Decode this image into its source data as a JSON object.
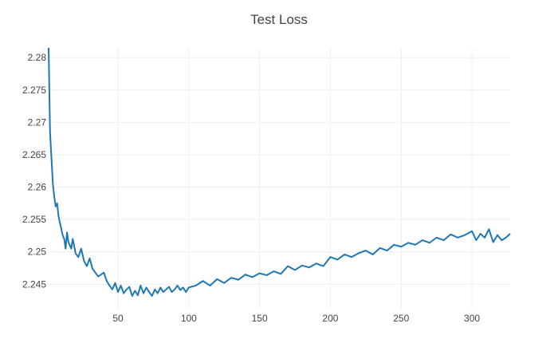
{
  "chart_data": {
    "type": "line",
    "title": "Test Loss",
    "xlabel": "",
    "ylabel": "",
    "xlim": [
      1,
      327
    ],
    "ylim": [
      2.2427,
      2.2815
    ],
    "grid": true,
    "x_ticks": [
      50,
      100,
      150,
      200,
      250,
      300
    ],
    "y_ticks": [
      2.245,
      2.25,
      2.255,
      2.26,
      2.265,
      2.27,
      2.275,
      2.28
    ],
    "series": [
      {
        "color": "#1f77b4",
        "x": [
          1,
          2,
          3,
          4,
          5,
          6,
          7,
          8,
          9,
          10,
          11,
          12,
          13,
          14,
          15,
          16,
          17,
          18,
          19,
          20,
          22,
          24,
          26,
          28,
          30,
          32,
          34,
          36,
          38,
          40,
          42,
          44,
          46,
          48,
          50,
          52,
          54,
          56,
          58,
          60,
          62,
          64,
          66,
          68,
          70,
          72,
          74,
          76,
          78,
          80,
          82,
          84,
          86,
          88,
          90,
          92,
          94,
          96,
          98,
          100,
          105,
          110,
          115,
          120,
          125,
          130,
          135,
          140,
          145,
          150,
          155,
          160,
          165,
          170,
          175,
          180,
          185,
          190,
          195,
          200,
          205,
          210,
          215,
          220,
          225,
          230,
          235,
          240,
          245,
          250,
          255,
          260,
          265,
          270,
          275,
          280,
          285,
          290,
          295,
          300,
          303,
          306,
          309,
          312,
          315,
          318,
          321,
          324,
          327
        ],
        "y": [
          2.2815,
          2.2685,
          2.2645,
          2.2605,
          2.2585,
          2.257,
          2.2575,
          2.2555,
          2.2545,
          2.2535,
          2.2525,
          2.252,
          2.2505,
          2.253,
          2.2515,
          2.251,
          2.2505,
          2.252,
          2.251,
          2.2498,
          2.2492,
          2.2505,
          2.2486,
          2.2478,
          2.249,
          2.2474,
          2.2468,
          2.2462,
          2.2465,
          2.2468,
          2.2455,
          2.2448,
          2.2442,
          2.2452,
          2.2438,
          2.2448,
          2.2436,
          2.2442,
          2.2446,
          2.2432,
          2.244,
          2.2433,
          2.2448,
          2.2436,
          2.2445,
          2.2438,
          2.2432,
          2.2442,
          2.2436,
          2.2445,
          2.2438,
          2.2442,
          2.2446,
          2.2438,
          2.2442,
          2.2448,
          2.2441,
          2.2445,
          2.2438,
          2.2445,
          2.2448,
          2.2455,
          2.2448,
          2.2458,
          2.2452,
          2.246,
          2.2457,
          2.2465,
          2.2461,
          2.2467,
          2.2464,
          2.247,
          2.2466,
          2.2478,
          2.2472,
          2.2479,
          2.2476,
          2.2482,
          2.2478,
          2.2492,
          2.2488,
          2.2496,
          2.2492,
          2.2498,
          2.2502,
          2.2496,
          2.2506,
          2.2502,
          2.2511,
          2.2508,
          2.2514,
          2.2511,
          2.2518,
          2.2514,
          2.2522,
          2.2518,
          2.2527,
          2.2522,
          2.2526,
          2.2532,
          2.2518,
          2.2528,
          2.2522,
          2.2535,
          2.2515,
          2.2526,
          2.2518,
          2.2522,
          2.2528
        ]
      }
    ]
  }
}
